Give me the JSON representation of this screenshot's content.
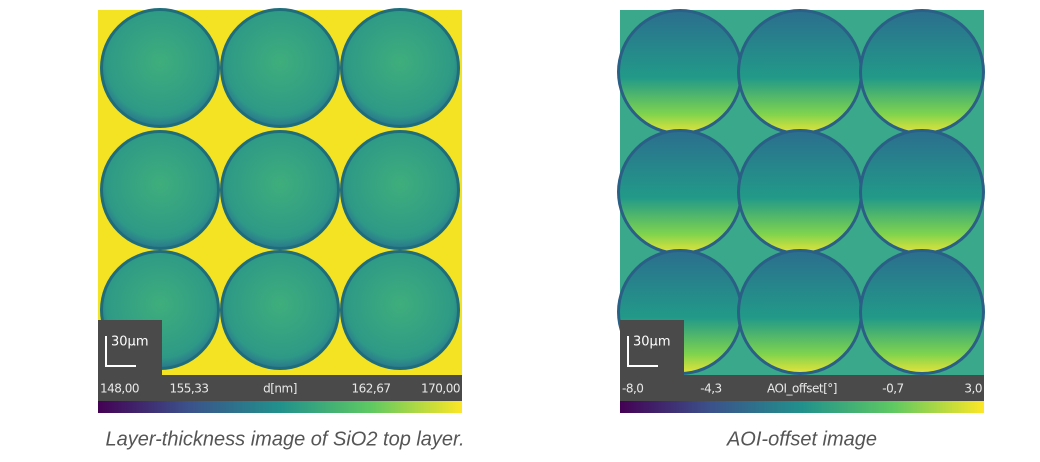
{
  "panels": [
    {
      "scale_bar": "30µm",
      "colorbar_labels": [
        "148,00",
        "155,33",
        "d[nm]",
        "162,67",
        "170,00"
      ],
      "caption": "Layer-thickness image of SiO2 top layer."
    },
    {
      "scale_bar": "30µm",
      "colorbar_labels": [
        "-8,0",
        "-4,3",
        "AOI_offset[°]",
        "-0,7",
        "3,0"
      ],
      "caption": "AOI-offset image"
    }
  ]
}
